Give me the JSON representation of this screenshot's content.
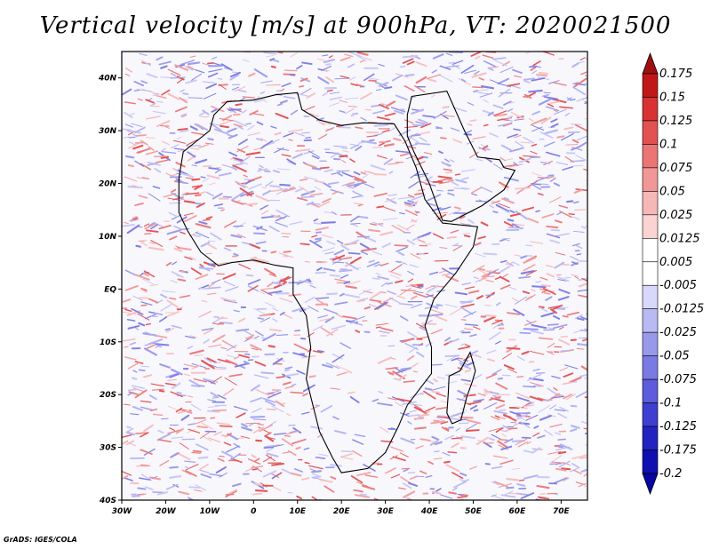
{
  "title": "Vertical velocity [m/s] at 900hPa, VT: 2020021500",
  "credit": "GrADS: IGES/COLA",
  "map": {
    "lon_range": [
      -30,
      76
    ],
    "lat_range": [
      -40,
      45
    ],
    "lon_ticks": [
      {
        "value": -30,
        "label": "30W"
      },
      {
        "value": -20,
        "label": "20W"
      },
      {
        "value": -10,
        "label": "10W"
      },
      {
        "value": 0,
        "label": "0"
      },
      {
        "value": 10,
        "label": "10E"
      },
      {
        "value": 20,
        "label": "20E"
      },
      {
        "value": 30,
        "label": "30E"
      },
      {
        "value": 40,
        "label": "40E"
      },
      {
        "value": 50,
        "label": "50E"
      },
      {
        "value": 60,
        "label": "60E"
      },
      {
        "value": 70,
        "label": "70E"
      }
    ],
    "lat_ticks": [
      {
        "value": 40,
        "label": "40N"
      },
      {
        "value": 30,
        "label": "30N"
      },
      {
        "value": 20,
        "label": "20N"
      },
      {
        "value": 10,
        "label": "10N"
      },
      {
        "value": 0,
        "label": "EQ"
      },
      {
        "value": -10,
        "label": "10S"
      },
      {
        "value": -20,
        "label": "20S"
      },
      {
        "value": -30,
        "label": "30S"
      },
      {
        "value": -40,
        "label": "40S"
      }
    ],
    "africa_outline": [
      [
        -17,
        21
      ],
      [
        -16,
        26
      ],
      [
        -13,
        28
      ],
      [
        -10,
        30
      ],
      [
        -9,
        33
      ],
      [
        -6,
        35.5
      ],
      [
        0,
        35.8
      ],
      [
        5,
        36.8
      ],
      [
        10,
        37.2
      ],
      [
        11,
        34
      ],
      [
        15,
        32
      ],
      [
        20,
        31
      ],
      [
        25,
        31.5
      ],
      [
        32,
        31.3
      ],
      [
        34.5,
        28
      ],
      [
        37,
        23
      ],
      [
        39,
        17
      ],
      [
        43,
        12.5
      ],
      [
        51,
        11.8
      ],
      [
        50,
        8
      ],
      [
        46,
        3
      ],
      [
        41,
        -2
      ],
      [
        39,
        -7
      ],
      [
        40.5,
        -11
      ],
      [
        40.5,
        -16
      ],
      [
        35,
        -22
      ],
      [
        33,
        -26
      ],
      [
        30,
        -31
      ],
      [
        26,
        -34
      ],
      [
        20,
        -34.8
      ],
      [
        18,
        -32
      ],
      [
        15,
        -27
      ],
      [
        12,
        -17
      ],
      [
        13,
        -11
      ],
      [
        12,
        -5
      ],
      [
        9,
        -1
      ],
      [
        9,
        4
      ],
      [
        5,
        4.5
      ],
      [
        0,
        5.5
      ],
      [
        -5,
        5
      ],
      [
        -8,
        4.4
      ],
      [
        -12,
        7
      ],
      [
        -15,
        11
      ],
      [
        -17,
        14.5
      ],
      [
        -17,
        21
      ]
    ],
    "arabia_outline": [
      [
        35,
        33
      ],
      [
        36,
        36.5
      ],
      [
        44,
        37.5
      ],
      [
        48,
        30
      ],
      [
        51,
        25
      ],
      [
        56,
        24.5
      ],
      [
        57,
        23
      ],
      [
        59.5,
        22.5
      ],
      [
        57,
        18.8
      ],
      [
        52,
        15.8
      ],
      [
        45,
        12.8
      ],
      [
        43,
        13
      ],
      [
        40,
        20
      ],
      [
        36.5,
        26
      ],
      [
        35,
        29
      ]
    ],
    "madagascar_outline": [
      [
        49.3,
        -12
      ],
      [
        50.5,
        -15.5
      ],
      [
        49.8,
        -17.5
      ],
      [
        48.5,
        -20.5
      ],
      [
        47.2,
        -24.8
      ],
      [
        45.2,
        -25.5
      ],
      [
        44,
        -23.5
      ],
      [
        44.3,
        -20
      ],
      [
        44.5,
        -16.5
      ],
      [
        47,
        -15.5
      ],
      [
        49.3,
        -12
      ]
    ]
  },
  "colorbar": {
    "colors": [
      "#a01010",
      "#c01818",
      "#d83232",
      "#e25252",
      "#eb7575",
      "#f19797",
      "#f6b7b7",
      "#fad3d3",
      "#ffffff",
      "#ffffff",
      "#d8d8fa",
      "#b9b9f3",
      "#9999ec",
      "#7a7ae4",
      "#5c5cdc",
      "#3e3ed1",
      "#2323c2",
      "#1010b0",
      "#0606a0"
    ],
    "labels": [
      "0.175",
      "0.15",
      "0.125",
      "0.1",
      "0.075",
      "0.05",
      "0.025",
      "0.0125",
      "0.005",
      "-0.005",
      "-0.0125",
      "-0.025",
      "-0.05",
      "-0.075",
      "-0.1",
      "-0.125",
      "-0.175",
      "-0.2"
    ]
  }
}
